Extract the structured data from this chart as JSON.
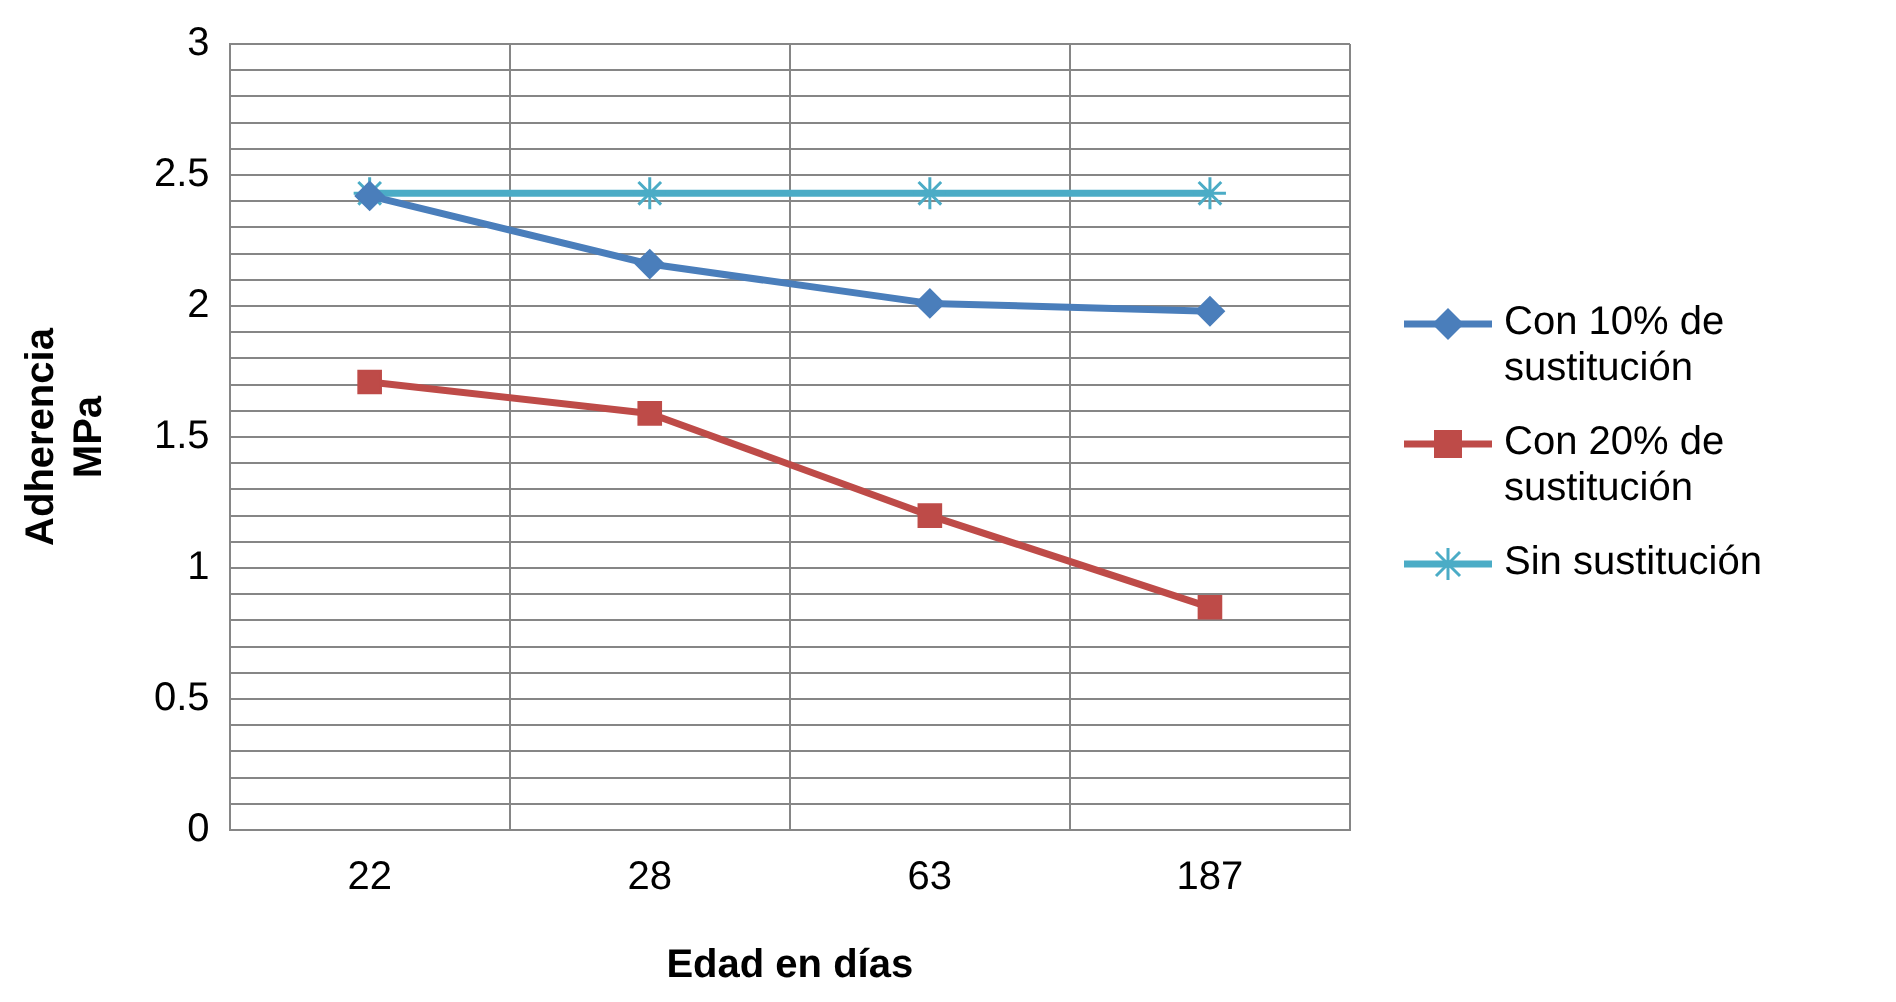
{
  "chart_data": {
    "type": "line",
    "xlabel": "Edad en días",
    "ylabel": "Adherencia\nMPa",
    "categories": [
      "22",
      "28",
      "63",
      "187"
    ],
    "series": [
      {
        "name": "Con 10% de sustitución",
        "color": "#4a7ebb",
        "marker": "diamond",
        "values": [
          2.42,
          2.16,
          2.01,
          1.98
        ]
      },
      {
        "name": "Con 20% de sustitución",
        "color": "#be4b48",
        "marker": "square",
        "values": [
          1.71,
          1.59,
          1.2,
          0.85
        ]
      },
      {
        "name": "Sin sustitución",
        "color": "#4bacc6",
        "marker": "cross",
        "values": [
          2.43,
          2.43,
          2.43,
          2.43
        ]
      }
    ],
    "ylim": [
      0,
      3
    ],
    "yticks": [
      0,
      {
        "value": 0.1,
        "label": null
      },
      {
        "value": 0.2,
        "label": null
      },
      {
        "value": 0.3,
        "label": null
      },
      {
        "value": 0.4,
        "label": null
      },
      0.5,
      {
        "value": 0.6,
        "label": null
      },
      {
        "value": 0.7,
        "label": null
      },
      {
        "value": 0.8,
        "label": null
      },
      {
        "value": 0.9,
        "label": null
      },
      1,
      {
        "value": 1.1,
        "label": null
      },
      {
        "value": 1.2,
        "label": null
      },
      {
        "value": 1.3,
        "label": null
      },
      {
        "value": 1.4,
        "label": null
      },
      1.5,
      {
        "value": 1.6,
        "label": null
      },
      {
        "value": 1.7,
        "label": null
      },
      {
        "value": 1.8,
        "label": null
      },
      {
        "value": 1.9,
        "label": null
      },
      2,
      {
        "value": 2.1,
        "label": null
      },
      {
        "value": 2.2,
        "label": null
      },
      {
        "value": 2.3,
        "label": null
      },
      {
        "value": 2.4,
        "label": null
      },
      2.5,
      {
        "value": 2.6,
        "label": null
      },
      {
        "value": 2.7,
        "label": null
      },
      {
        "value": 2.8,
        "label": null
      },
      {
        "value": 2.9,
        "label": null
      },
      3
    ],
    "grid": true,
    "legend": "right",
    "line_style": "solid"
  }
}
